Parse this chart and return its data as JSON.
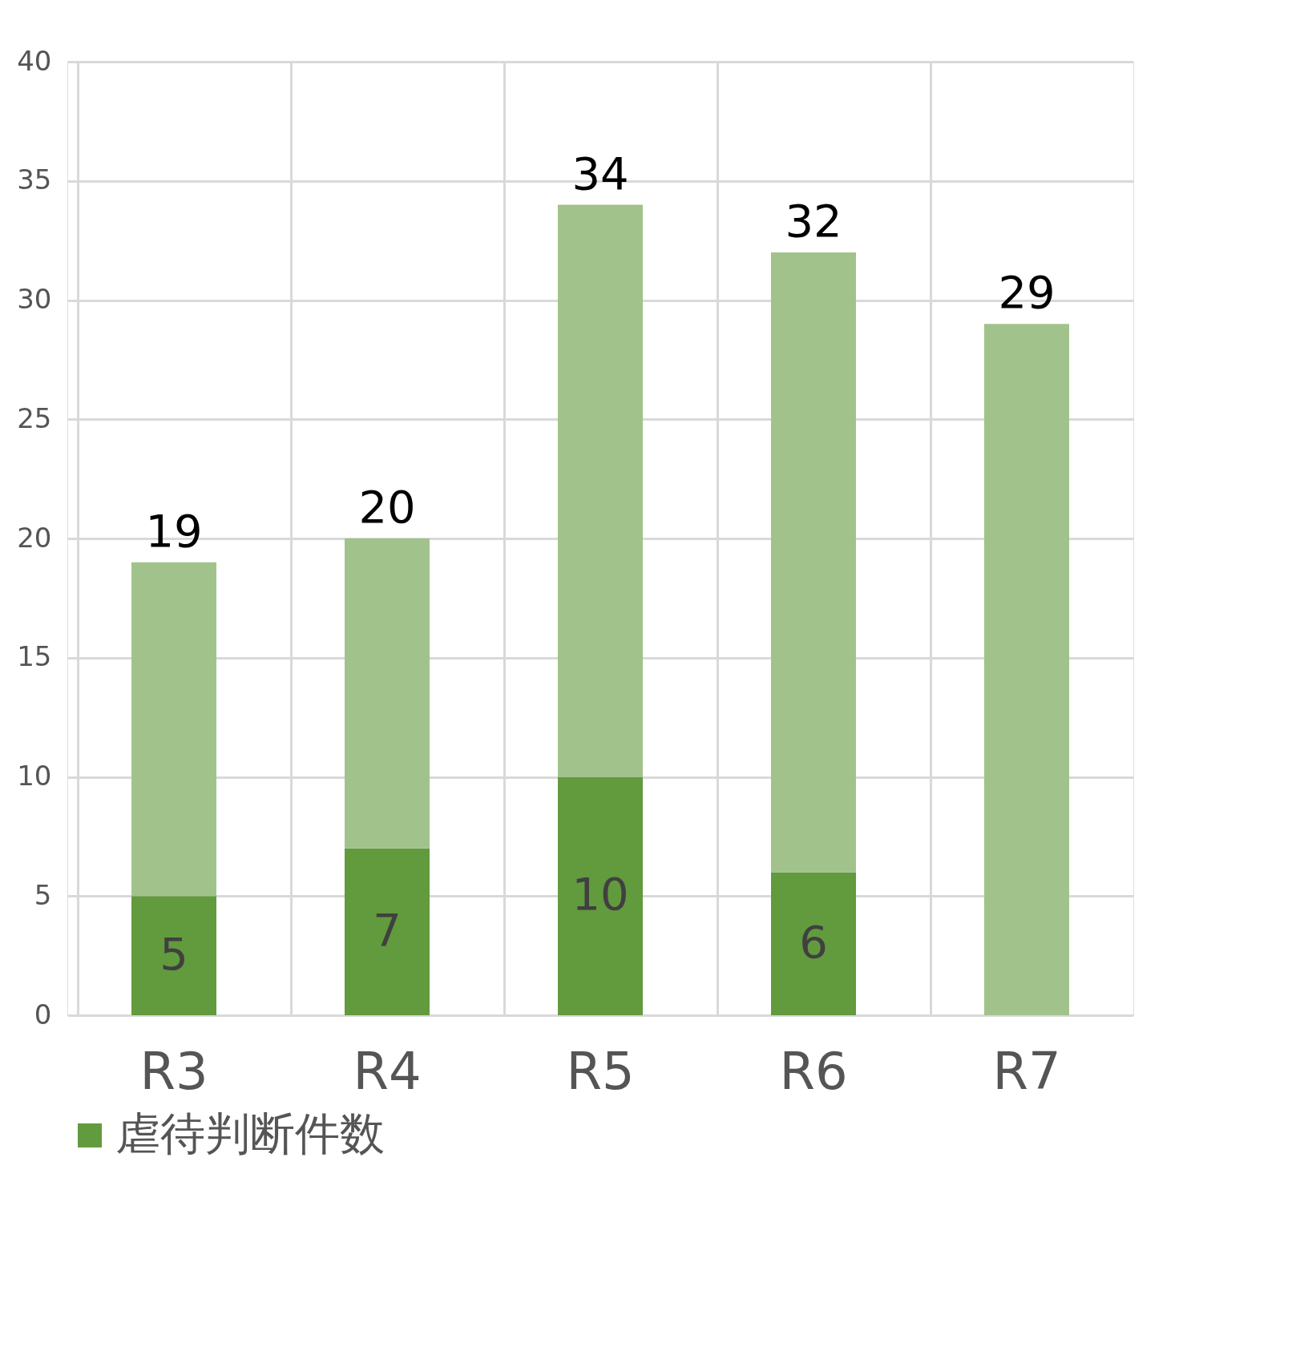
{
  "chart_data": {
    "type": "bar",
    "stacked": true,
    "categories": [
      "R3",
      "R4",
      "R5",
      "R6",
      "R7"
    ],
    "series": [
      {
        "name": "虐待判断件数",
        "color": "#629a3e",
        "values": [
          5,
          7,
          10,
          6,
          null
        ],
        "value_labels": [
          "5",
          "7",
          "10",
          "6",
          null
        ]
      },
      {
        "color": "#a1c38b",
        "values": [
          14,
          13,
          24,
          26,
          29
        ]
      }
    ],
    "totals": [
      "19",
      "20",
      "34",
      "32",
      "29"
    ],
    "ylim": [
      0,
      40
    ],
    "yticks": [
      0,
      5,
      10,
      15,
      20,
      25,
      30,
      35,
      40
    ],
    "grid": true,
    "legend": "bottom"
  }
}
